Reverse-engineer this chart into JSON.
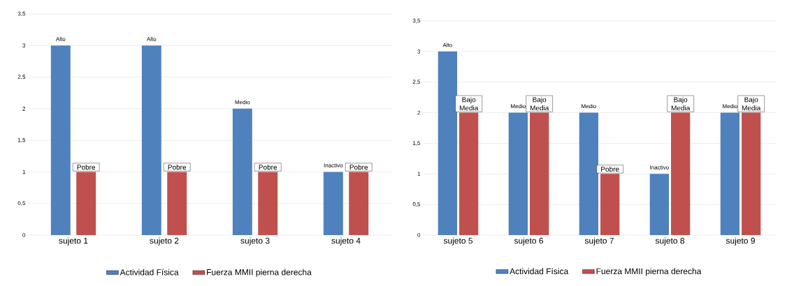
{
  "chart_data": [
    {
      "type": "bar",
      "categories": [
        "sujeto 1",
        "sujeto 2",
        "sujeto 3",
        "sujeto 4"
      ],
      "series": [
        {
          "name": "Actividad Física",
          "color": "#4f81bd",
          "values": [
            3,
            3,
            2,
            1
          ],
          "value_labels": [
            "Alto",
            "Alto",
            "Medio",
            "Inactivo"
          ]
        },
        {
          "name": "Fuerza MMII pierna derecha",
          "color": "#c0504d",
          "values": [
            1,
            1,
            1,
            1
          ],
          "value_labels": [
            "Pobre",
            "Pobre",
            "Pobre",
            "Pobre"
          ]
        }
      ],
      "ylim": [
        0,
        3.5
      ],
      "yticks": [
        0,
        {
          "value": 0.5,
          "label": "0,5"
        },
        1,
        {
          "value": 1.5,
          "label": "1,5"
        },
        2,
        {
          "value": 2.5,
          "label": "2,5"
        },
        3,
        {
          "value": 3.5,
          "label": "3,5"
        }
      ],
      "grid": "y",
      "legend": "bottom"
    },
    {
      "type": "bar",
      "categories": [
        "sujeto 5",
        "sujeto 6",
        "sujeto 7",
        "sujeto 8",
        "sujeto 9"
      ],
      "series": [
        {
          "name": "Actividad Física",
          "color": "#4f81bd",
          "values": [
            3,
            2,
            2,
            1,
            2
          ],
          "value_labels": [
            "Alto",
            "Medio",
            "Medio",
            "Inactivo",
            "Medio"
          ]
        },
        {
          "name": "Fuerza MMII pierna derecha",
          "color": "#c0504d",
          "values": [
            2,
            2,
            1,
            2,
            2
          ],
          "value_labels": [
            "Bajo Media",
            "Bajo Media",
            "Pobre",
            "Bajo Media",
            "Bajo Media"
          ]
        }
      ],
      "ylim": [
        0,
        3.5
      ],
      "yticks": [
        0,
        {
          "value": 0.5,
          "label": "0,5"
        },
        1,
        {
          "value": 1.5,
          "label": "1,5"
        },
        2,
        {
          "value": 2.5,
          "label": "2,5"
        },
        3,
        {
          "value": 3.5,
          "label": "3,5"
        }
      ],
      "grid": "y",
      "legend": "bottom"
    }
  ]
}
